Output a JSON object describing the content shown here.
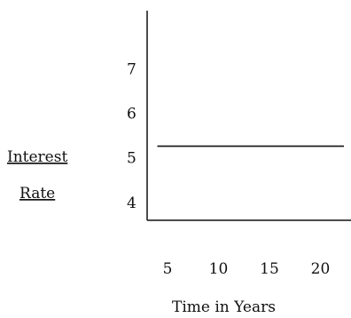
{
  "chart_data": {
    "type": "line",
    "xlabel": "Time in Years",
    "ylabel_lines": [
      "Interest",
      "Rate"
    ],
    "ylabel_underlined": true,
    "x_ticks": [
      5,
      10,
      15,
      20
    ],
    "y_ticks": [
      4,
      5,
      6,
      7
    ],
    "xlim": [
      3,
      23
    ],
    "ylim": [
      3.6,
      8.3
    ],
    "series": [
      {
        "x": [
          4,
          22.3
        ],
        "y": [
          5.26,
          5.26
        ]
      }
    ],
    "grid": false,
    "legend": "none",
    "colors": {
      "line": "#111111",
      "axis": "#111111",
      "text": "#111111"
    }
  }
}
